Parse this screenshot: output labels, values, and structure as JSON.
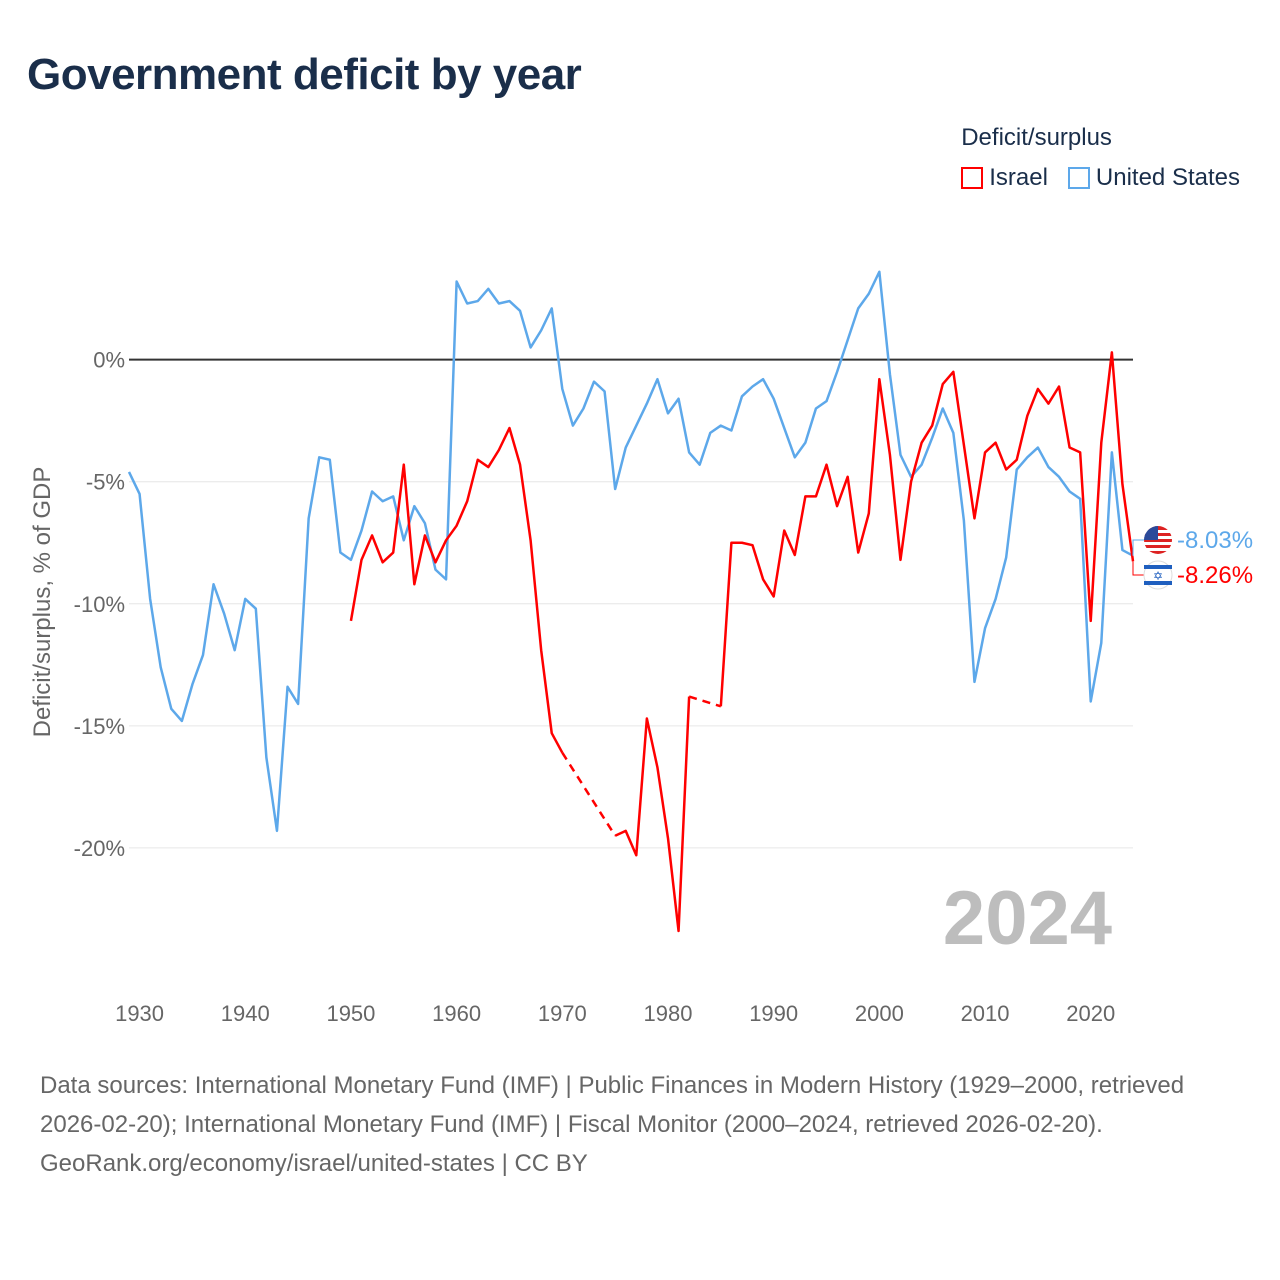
{
  "chart_data": {
    "type": "line",
    "title": "Government deficit by year",
    "xlabel": "",
    "ylabel": "Deficit/surplus, % of GDP",
    "xlim": [
      1929,
      2024
    ],
    "ylim": [
      -25,
      4
    ],
    "x_ticks": [
      1930,
      1940,
      1950,
      1960,
      1970,
      1980,
      1990,
      2000,
      2010,
      2020
    ],
    "x_tick_labels": [
      "1930",
      "1940",
      "1950",
      "1960",
      "1970",
      "1980",
      "1990",
      "2000",
      "2010",
      "2020"
    ],
    "y_ticks": [
      0,
      -5,
      -10,
      -15,
      -20
    ],
    "y_tick_labels": [
      "0%",
      "-5%",
      "-10%",
      "-15%",
      "-20%"
    ],
    "grid": true,
    "legend_title": "Deficit/surplus",
    "legend_position": "top-right",
    "year_label": "2024",
    "series": [
      {
        "name": "Israel",
        "color": "#ff0000",
        "start_year": 1950,
        "values": [
          -10.7,
          -8.2,
          -7.2,
          -8.3,
          -7.9,
          -4.3,
          -9.2,
          -7.2,
          -8.3,
          -7.4,
          -6.8,
          -5.8,
          -4.1,
          -4.4,
          -3.7,
          -2.8,
          -4.3,
          -7.4,
          -11.9,
          -15.3,
          -16.1,
          null,
          null,
          null,
          null,
          -19.5,
          -19.3,
          -20.3,
          -14.7,
          -16.7,
          -19.6,
          -23.4,
          -13.8,
          null,
          null,
          -14.2,
          -7.5,
          -7.5,
          -7.6,
          -9.0,
          -9.7,
          -7.0,
          -8.0,
          -5.6,
          -5.6,
          -4.3,
          -6.0,
          -4.8,
          -7.9,
          -6.3,
          -0.8,
          -3.9,
          -8.2,
          -5.0,
          -3.4,
          -2.7,
          -1.0,
          -0.5,
          -3.5,
          -6.5,
          -3.8,
          -3.4,
          -4.5,
          -4.1,
          -2.3,
          -1.2,
          -1.8,
          -1.1,
          -3.6,
          -3.8,
          -10.7,
          -3.4,
          0.3,
          -5.1,
          -8.26
        ],
        "end_label": "-8.26%",
        "flag_icon": "israel-flag-icon"
      },
      {
        "name": "United States",
        "color": "#5da8ea",
        "start_year": 1929,
        "values": [
          -4.6,
          -5.5,
          -9.8,
          -12.6,
          -14.3,
          -14.8,
          -13.3,
          -12.1,
          -9.2,
          -10.4,
          -11.9,
          -9.8,
          -10.2,
          -16.3,
          -19.3,
          -13.4,
          -14.1,
          -6.5,
          -4.0,
          -4.1,
          -7.9,
          -8.2,
          -7.0,
          -5.4,
          -5.8,
          -5.6,
          -7.4,
          -6.0,
          -6.7,
          -8.6,
          -9.0,
          3.2,
          2.3,
          2.4,
          2.9,
          2.3,
          2.4,
          2.0,
          0.5,
          1.2,
          2.1,
          -1.2,
          -2.7,
          -2.0,
          -0.9,
          -1.3,
          -5.3,
          -3.6,
          -2.7,
          -1.8,
          -0.8,
          -2.2,
          -1.6,
          -3.8,
          -4.3,
          -3.0,
          -2.7,
          -2.9,
          -1.5,
          -1.1,
          -0.8,
          -1.6,
          -2.8,
          -4.0,
          -3.4,
          -2.0,
          -1.7,
          -0.5,
          0.8,
          2.1,
          2.7,
          3.6,
          -0.6,
          -3.9,
          -4.8,
          -4.3,
          -3.2,
          -2.0,
          -3.0,
          -6.6,
          -13.2,
          -11.0,
          -9.8,
          -8.1,
          -4.5,
          -4.0,
          -3.6,
          -4.4,
          -4.8,
          -5.4,
          -5.7,
          -14.0,
          -11.6,
          -3.8,
          -7.8,
          -8.03
        ],
        "end_label": "-8.03%",
        "flag_icon": "us-flag-icon"
      }
    ]
  },
  "footer": {
    "sources": "Data sources: International Monetary Fund (IMF) | Public Finances in Modern History (1929–2000, retrieved 2026-02-20); International Monetary Fund (IMF) | Fiscal Monitor (2000–2024, retrieved 2026-02-20).",
    "attribution": "GeoRank.org/economy/israel/united-states | CC BY"
  }
}
